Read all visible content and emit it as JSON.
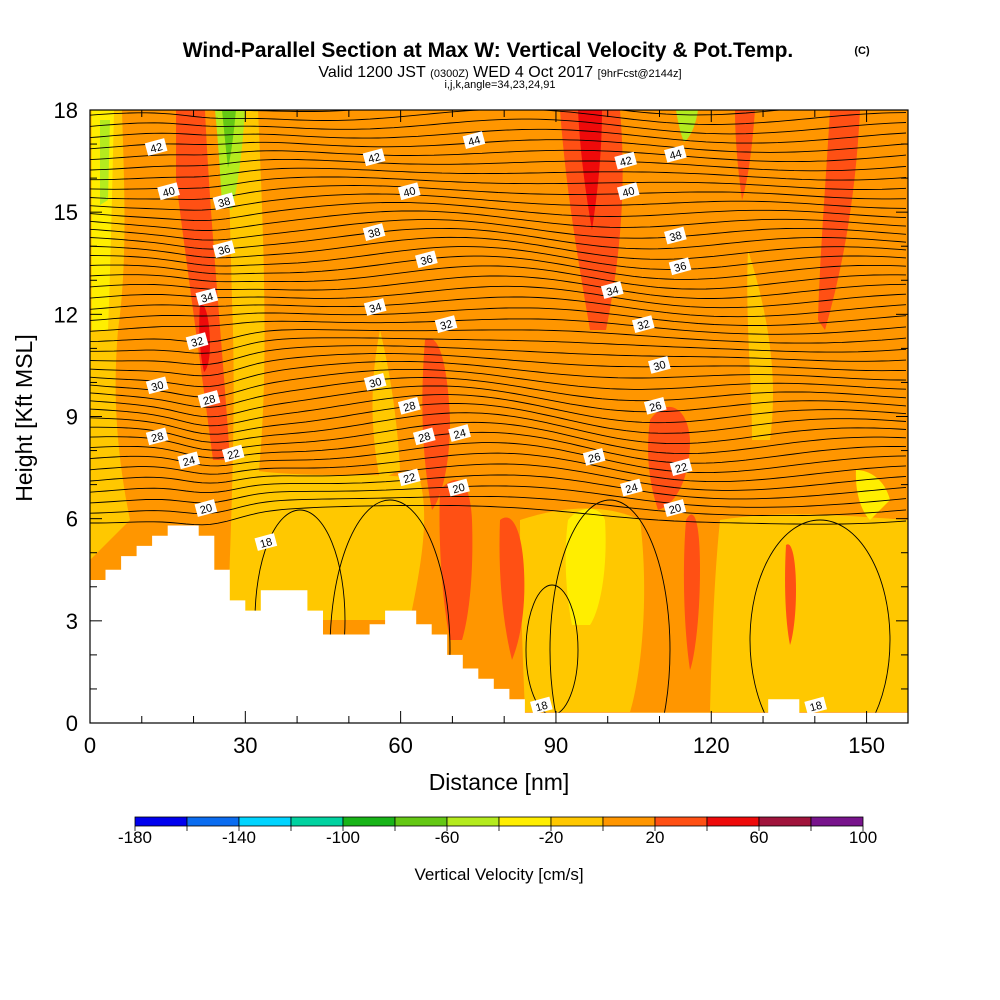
{
  "title": {
    "main": "Wind-Parallel Section at Max W: Vertical Velocity & Pot.Temp.",
    "unit": "(C)",
    "valid_prefix": "Valid 1200 JST",
    "valid_utc": "(0300Z)",
    "valid_date": "WED 4 Oct 2017",
    "forecast": "[9hrFcst@2144z]",
    "run_info": "i,j,k,angle=34,23,24,91"
  },
  "chart_data": {
    "type": "heatmap",
    "xlabel": "Distance [nm]",
    "ylabel": "Height [Kft MSL]",
    "xlim": [
      0,
      158
    ],
    "ylim": [
      0,
      18
    ],
    "x_ticks": [
      0,
      30,
      60,
      90,
      120,
      150
    ],
    "y_ticks": [
      0,
      3,
      6,
      9,
      12,
      15,
      18
    ],
    "shading_variable": "Vertical Velocity [cm/s]",
    "contour_variable": "Potential temperature (C)",
    "colorbar": {
      "title": "Vertical Velocity [cm/s]",
      "bounds": [
        -180,
        -160,
        -140,
        -120,
        -100,
        -80,
        -60,
        -40,
        -20,
        0,
        20,
        40,
        60,
        80,
        100
      ],
      "tick_labels": [
        "-180",
        "-140",
        "-100",
        "-60",
        "-20",
        "20",
        "60",
        "100"
      ],
      "colors": [
        "#0000ee",
        "#0a6cf0",
        "#00d4ff",
        "#00d2a0",
        "#18b418",
        "#64c814",
        "#b4eb1e",
        "#ffee00",
        "#ffc800",
        "#ff9600",
        "#ff5014",
        "#ee0a0a",
        "#a0143c",
        "#78148c"
      ]
    },
    "theta_contour_labels": [
      {
        "value": 42,
        "x": 12.8,
        "y": 16.9
      },
      {
        "value": 40,
        "x": 15.2,
        "y": 15.6
      },
      {
        "value": 38,
        "x": 25.9,
        "y": 15.3
      },
      {
        "value": 36,
        "x": 25.9,
        "y": 13.9
      },
      {
        "value": 34,
        "x": 22.6,
        "y": 12.5
      },
      {
        "value": 32,
        "x": 20.7,
        "y": 11.2
      },
      {
        "value": 30,
        "x": 13.0,
        "y": 9.9
      },
      {
        "value": 28,
        "x": 23.0,
        "y": 9.5
      },
      {
        "value": 28,
        "x": 13.0,
        "y": 8.4
      },
      {
        "value": 24,
        "x": 19.1,
        "y": 7.7
      },
      {
        "value": 22,
        "x": 27.7,
        "y": 7.9
      },
      {
        "value": 20,
        "x": 22.4,
        "y": 6.3
      },
      {
        "value": 18,
        "x": 34.0,
        "y": 5.3
      },
      {
        "value": 42,
        "x": 54.9,
        "y": 16.6
      },
      {
        "value": 44,
        "x": 74.2,
        "y": 17.1
      },
      {
        "value": 40,
        "x": 61.7,
        "y": 15.6
      },
      {
        "value": 38,
        "x": 54.9,
        "y": 14.4
      },
      {
        "value": 36,
        "x": 65.0,
        "y": 13.6
      },
      {
        "value": 34,
        "x": 55.1,
        "y": 12.2
      },
      {
        "value": 32,
        "x": 68.8,
        "y": 11.7
      },
      {
        "value": 30,
        "x": 55.1,
        "y": 10.0
      },
      {
        "value": 28,
        "x": 61.7,
        "y": 9.3
      },
      {
        "value": 28,
        "x": 64.6,
        "y": 8.4
      },
      {
        "value": 24,
        "x": 71.4,
        "y": 8.5
      },
      {
        "value": 22,
        "x": 61.7,
        "y": 7.2
      },
      {
        "value": 20,
        "x": 71.2,
        "y": 6.9
      },
      {
        "value": 26,
        "x": 97.4,
        "y": 7.8
      },
      {
        "value": 42,
        "x": 103.5,
        "y": 16.5
      },
      {
        "value": 44,
        "x": 113.1,
        "y": 16.7
      },
      {
        "value": 40,
        "x": 104.0,
        "y": 15.6
      },
      {
        "value": 38,
        "x": 113.1,
        "y": 14.3
      },
      {
        "value": 36,
        "x": 114.0,
        "y": 13.4
      },
      {
        "value": 34,
        "x": 100.9,
        "y": 12.7
      },
      {
        "value": 32,
        "x": 106.9,
        "y": 11.7
      },
      {
        "value": 30,
        "x": 110.0,
        "y": 10.5
      },
      {
        "value": 26,
        "x": 109.2,
        "y": 9.3
      },
      {
        "value": 22,
        "x": 114.2,
        "y": 7.5
      },
      {
        "value": 24,
        "x": 104.6,
        "y": 6.9
      },
      {
        "value": 20,
        "x": 113.0,
        "y": 6.3
      },
      {
        "value": 18,
        "x": 87.2,
        "y": 0.5
      },
      {
        "value": 18,
        "x": 140.2,
        "y": 0.5
      }
    ],
    "terrain_profile": {
      "x": [
        0,
        3,
        3,
        6,
        6,
        9,
        9,
        12,
        12,
        15,
        15,
        18,
        18,
        21,
        21,
        24,
        24,
        27,
        27,
        30,
        30,
        33,
        33,
        42,
        42,
        45,
        45,
        51,
        51,
        54,
        54,
        57,
        57,
        60,
        60,
        63,
        63,
        66,
        66,
        69,
        69,
        72,
        72,
        75,
        75,
        78,
        78,
        81,
        81,
        84,
        84,
        87,
        87,
        131,
        131,
        137,
        137,
        158
      ],
      "y": [
        4.2,
        4.2,
        4.5,
        4.5,
        4.9,
        4.9,
        5.2,
        5.2,
        5.5,
        5.5,
        5.8,
        5.8,
        5.8,
        5.8,
        5.5,
        5.5,
        4.5,
        4.5,
        3.6,
        3.6,
        3.3,
        3.3,
        3.9,
        3.9,
        3.3,
        3.3,
        2.6,
        2.6,
        2.6,
        2.6,
        2.9,
        2.9,
        3.3,
        3.3,
        3.3,
        3.3,
        2.9,
        2.9,
        2.6,
        2.6,
        2.0,
        2.0,
        1.6,
        1.6,
        1.3,
        1.3,
        1.0,
        1.0,
        0.7,
        0.7,
        0.3,
        0.3,
        0.3,
        0.3,
        0.7,
        0.7,
        0.3,
        0.3
      ]
    }
  }
}
